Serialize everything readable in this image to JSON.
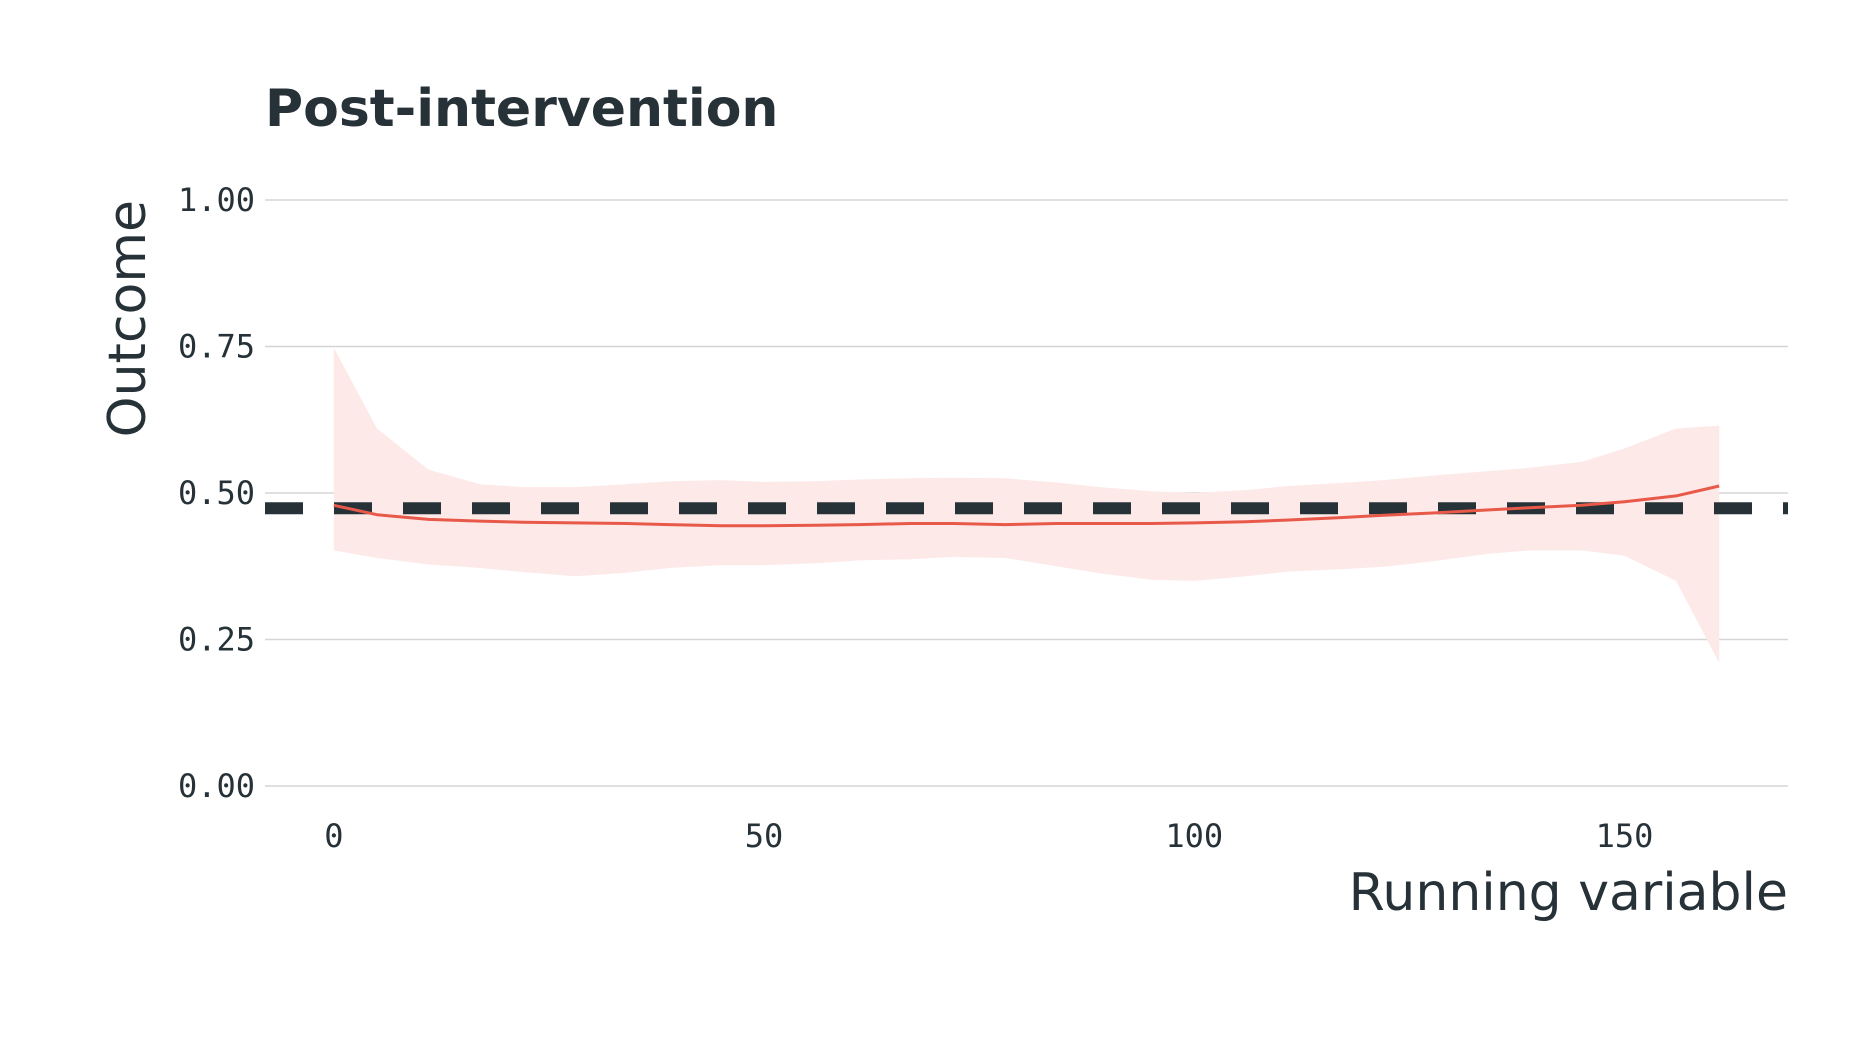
{
  "chart_data": {
    "type": "line",
    "title": "Post-intervention",
    "xlabel": "Running variable",
    "ylabel": "Outcome",
    "xlim": [
      -8,
      169
    ],
    "ylim": [
      0,
      1
    ],
    "x_ticks": [
      0,
      50,
      100,
      150
    ],
    "y_ticks": [
      0,
      0.25,
      0.5,
      0.75,
      1.0
    ],
    "y_tick_labels": [
      "0.00",
      "0.25",
      "0.50",
      "0.75",
      "1.00"
    ],
    "grid": "horizontal",
    "reference_line": {
      "y": 0.474,
      "style": "dashed",
      "color": "#263238"
    },
    "series": [
      {
        "color": "#e8594a",
        "band_color": "#fde9e8",
        "x": [
          0,
          5,
          11,
          17,
          22,
          28,
          34,
          39,
          45,
          50,
          56,
          61,
          67,
          72,
          78,
          84,
          89,
          95,
          100,
          106,
          111,
          117,
          122,
          128,
          134,
          139,
          145,
          150,
          156,
          161
        ],
        "y": [
          0.479,
          0.463,
          0.455,
          0.452,
          0.45,
          0.449,
          0.448,
          0.446,
          0.444,
          0.444,
          0.445,
          0.446,
          0.448,
          0.448,
          0.446,
          0.448,
          0.448,
          0.448,
          0.449,
          0.451,
          0.454,
          0.458,
          0.462,
          0.466,
          0.471,
          0.475,
          0.479,
          0.485,
          0.495,
          0.512
        ],
        "lower": [
          0.402,
          0.389,
          0.378,
          0.372,
          0.365,
          0.358,
          0.364,
          0.372,
          0.377,
          0.377,
          0.38,
          0.385,
          0.387,
          0.391,
          0.389,
          0.375,
          0.363,
          0.352,
          0.35,
          0.358,
          0.366,
          0.37,
          0.374,
          0.384,
          0.396,
          0.402,
          0.402,
          0.393,
          0.35,
          0.21
        ],
        "upper": [
          0.748,
          0.61,
          0.54,
          0.515,
          0.51,
          0.51,
          0.515,
          0.52,
          0.522,
          0.519,
          0.52,
          0.523,
          0.525,
          0.526,
          0.525,
          0.518,
          0.51,
          0.503,
          0.5,
          0.505,
          0.512,
          0.517,
          0.522,
          0.53,
          0.537,
          0.543,
          0.553,
          0.576,
          0.61,
          0.615
        ]
      }
    ]
  }
}
